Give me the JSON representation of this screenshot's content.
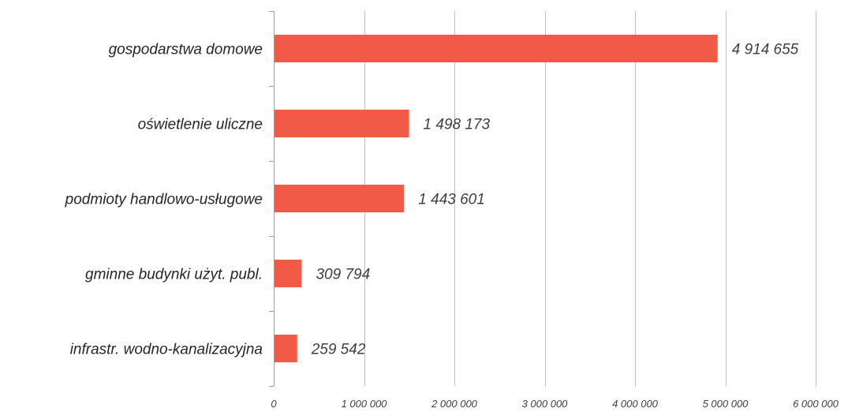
{
  "chart_data": {
    "type": "bar",
    "orientation": "horizontal",
    "categories": [
      "gospodarstwa domowe",
      "oświetlenie uliczne",
      "podmioty handlowo-usługowe",
      "gminne budynki użyt. publ.",
      "infrastr. wodno-kanalizacyjna"
    ],
    "values": [
      4914655,
      1498173,
      1443601,
      309794,
      259542
    ],
    "value_labels": [
      "4 914 655",
      "1 498 173",
      "1 443 601",
      "309 794",
      "259 542"
    ],
    "xlim": [
      0,
      6000000
    ],
    "x_ticks": [
      0,
      1000000,
      2000000,
      3000000,
      4000000,
      5000000,
      6000000
    ],
    "x_tick_labels": [
      "0",
      "1 000 000",
      "2 000 000",
      "3 000 000",
      "4 000 000",
      "5 000 000",
      "6 000 000"
    ],
    "title": "",
    "xlabel": "",
    "ylabel": "",
    "grid": true,
    "legend": "none",
    "colors": {
      "bar": "#f05a46",
      "grid": "#bfbfbf",
      "axis": "#9f9f9f"
    }
  }
}
